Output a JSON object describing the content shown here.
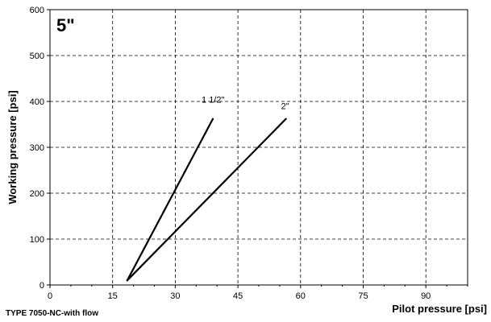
{
  "chart_data": {
    "type": "line",
    "title": "5\"",
    "footer": "TYPE 7050-NC-with flow",
    "xlabel": "Pilot pressure [psi]",
    "ylabel": "Working pressure [psi]",
    "xlim": [
      0,
      100
    ],
    "ylim": [
      0,
      600
    ],
    "xticks": [
      0,
      15,
      30,
      45,
      60,
      75,
      90
    ],
    "yticks": [
      0,
      100,
      200,
      300,
      400,
      500,
      600
    ],
    "x_grid_lines": [
      0,
      15,
      30,
      45,
      60,
      75,
      90,
      100
    ],
    "grid": true,
    "series": [
      {
        "name": "1 1/2\"",
        "x": [
          18.5,
          39
        ],
        "y": [
          10,
          362
        ]
      },
      {
        "name": "2\"",
        "x": [
          18.5,
          56.5
        ],
        "y": [
          10,
          362
        ]
      }
    ]
  }
}
